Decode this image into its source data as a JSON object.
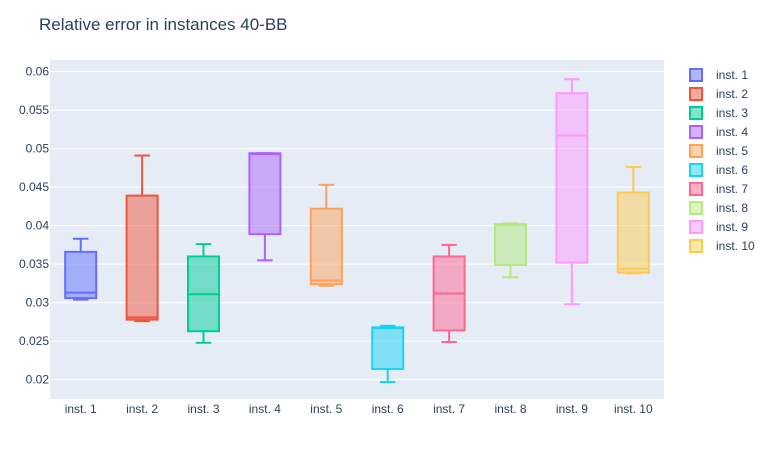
{
  "chart_data": {
    "type": "box",
    "title": "Relative error in instances 40-BB",
    "xlabel": "",
    "ylabel": "",
    "ylim": [
      0.0175,
      0.0615
    ],
    "yticks": [
      0.02,
      0.025,
      0.03,
      0.035,
      0.04,
      0.045,
      0.05,
      0.055,
      0.06
    ],
    "ytick_labels": [
      "0.02",
      "0.025",
      "0.03",
      "0.035",
      "0.04",
      "0.045",
      "0.05",
      "0.055",
      "0.06"
    ],
    "grid": true,
    "legend_position": "right",
    "categories": [
      "inst. 1",
      "inst. 2",
      "inst. 3",
      "inst. 4",
      "inst. 5",
      "inst. 6",
      "inst. 7",
      "inst. 8",
      "inst. 9",
      "inst. 10"
    ],
    "series": [
      {
        "name": "inst. 1",
        "color": "#636efa",
        "min": 0.0304,
        "q1": 0.0306,
        "median": 0.0313,
        "q3": 0.0366,
        "max": 0.0383
      },
      {
        "name": "inst. 2",
        "color": "#EF553B",
        "min": 0.0276,
        "q1": 0.0278,
        "median": 0.0281,
        "q3": 0.0439,
        "max": 0.0491
      },
      {
        "name": "inst. 3",
        "color": "#00cc96",
        "min": 0.0248,
        "q1": 0.0263,
        "median": 0.0311,
        "q3": 0.036,
        "max": 0.0376
      },
      {
        "name": "inst. 4",
        "color": "#ab63fa",
        "min": 0.0355,
        "q1": 0.0389,
        "median": 0.0493,
        "q3": 0.0494,
        "max": 0.0494
      },
      {
        "name": "inst. 5",
        "color": "#FFA15A",
        "min": 0.0322,
        "q1": 0.0324,
        "median": 0.0329,
        "q3": 0.0422,
        "max": 0.0453
      },
      {
        "name": "inst. 6",
        "color": "#19d3f3",
        "min": 0.0197,
        "q1": 0.0214,
        "median": 0.0267,
        "q3": 0.0268,
        "max": 0.027
      },
      {
        "name": "inst. 7",
        "color": "#FF6692",
        "min": 0.0249,
        "q1": 0.0264,
        "median": 0.0312,
        "q3": 0.036,
        "max": 0.0375
      },
      {
        "name": "inst. 8",
        "color": "#B6E880",
        "min": 0.0333,
        "q1": 0.0349,
        "median": 0.0401,
        "q3": 0.0402,
        "max": 0.0403
      },
      {
        "name": "inst. 9",
        "color": "#FF97FF",
        "min": 0.0298,
        "q1": 0.0352,
        "median": 0.0517,
        "q3": 0.0572,
        "max": 0.059
      },
      {
        "name": "inst. 10",
        "color": "#FECB52",
        "min": 0.0338,
        "q1": 0.0339,
        "median": 0.0344,
        "q3": 0.0443,
        "max": 0.0476
      }
    ]
  }
}
